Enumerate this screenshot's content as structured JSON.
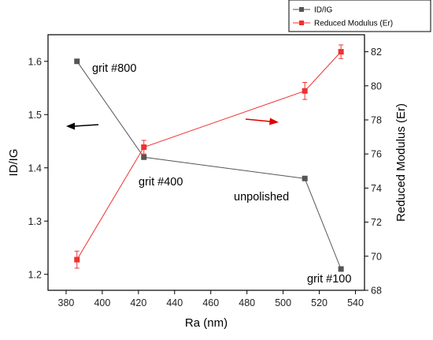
{
  "colors": {
    "series1": "#555555",
    "series2": "#f03030",
    "arrow_left": "#000000",
    "arrow_right": "#e00000"
  },
  "chart_data": {
    "type": "line",
    "title": "",
    "xlabel": "Ra (nm)",
    "ylabel": "ID/IG",
    "y2label": "Reduced Modulus (Er)",
    "xlim": [
      370,
      545
    ],
    "ylim": [
      1.17,
      1.65
    ],
    "y2lim": [
      68,
      83
    ],
    "x_ticks": [
      380,
      400,
      420,
      440,
      460,
      480,
      500,
      520,
      540
    ],
    "y_ticks": [
      1.2,
      1.3,
      1.4,
      1.5,
      1.6
    ],
    "y2_ticks": [
      68,
      70,
      72,
      74,
      76,
      78,
      80,
      82
    ],
    "legend_position": "top-right",
    "series": [
      {
        "name": "ID/IG",
        "axis": "left",
        "marker": "square",
        "x": [
          386,
          423,
          512,
          532
        ],
        "y": [
          1.6,
          1.42,
          1.38,
          1.21
        ]
      },
      {
        "name": "Reduced Modulus (Er)",
        "axis": "right",
        "marker": "square",
        "x": [
          386,
          423,
          512,
          532
        ],
        "y": [
          69.8,
          76.4,
          79.7,
          82.0
        ],
        "error": [
          0.5,
          0.4,
          0.5,
          0.4
        ]
      }
    ],
    "annotations": [
      {
        "text": "grit #800",
        "x": 386,
        "y": 1.6
      },
      {
        "text": "grit #400",
        "x": 423,
        "y": 1.42
      },
      {
        "text": "unpolished",
        "x": 512,
        "y": 1.38
      },
      {
        "text": "grit #100",
        "x": 532,
        "y": 1.21
      }
    ]
  }
}
